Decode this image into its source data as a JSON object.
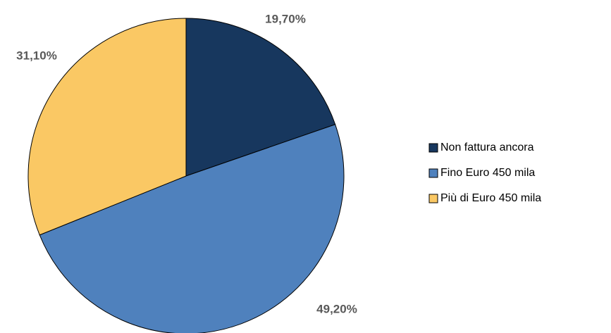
{
  "chart_data": {
    "type": "pie",
    "categories": [
      "Non fattura ancora",
      "Fino Euro 450 mila",
      "Più di Euro 450 mila"
    ],
    "values": [
      19.7,
      49.2,
      31.1
    ],
    "value_labels": [
      "19,70%",
      "49,20%",
      "31,10%"
    ],
    "colors": [
      "#17375e",
      "#4f81bd",
      "#fac864"
    ],
    "legend": "right"
  }
}
